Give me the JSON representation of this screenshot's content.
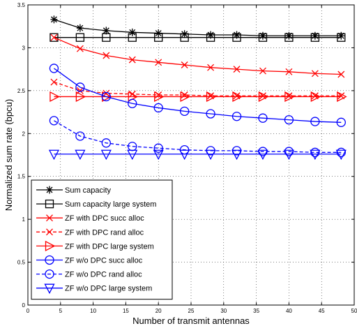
{
  "chart_data": {
    "type": "line",
    "xlabel": "Number of transmit antennas",
    "ylabel": "Normalized sum rate (bpcu)",
    "xlim": [
      0,
      50
    ],
    "ylim": [
      0,
      3.5
    ],
    "xticks": [
      "0",
      "5",
      "10",
      "15",
      "20",
      "25",
      "30",
      "35",
      "40",
      "45",
      "50"
    ],
    "yticks": [
      "0",
      "0.5",
      "1",
      "1.5",
      "2",
      "2.5",
      "3",
      "3.5"
    ],
    "grid": "on",
    "legend_placement": "bottom-left",
    "x": [
      4,
      8,
      12,
      16,
      20,
      24,
      28,
      32,
      36,
      40,
      44,
      48
    ],
    "series": [
      {
        "name": "Sum capacity",
        "color": "#000000",
        "marker": "asterisk",
        "dash": "solid",
        "values": [
          3.33,
          3.23,
          3.2,
          3.18,
          3.17,
          3.16,
          3.15,
          3.15,
          3.14,
          3.14,
          3.14,
          3.14
        ]
      },
      {
        "name": "Sum capacity large system",
        "color": "#000000",
        "marker": "square",
        "dash": "solid",
        "values": [
          3.12,
          3.12,
          3.12,
          3.12,
          3.12,
          3.12,
          3.12,
          3.12,
          3.12,
          3.12,
          3.12,
          3.12
        ]
      },
      {
        "name": "ZF with DPC succ alloc",
        "color": "#ff0000",
        "marker": "x",
        "dash": "solid",
        "values": [
          3.12,
          2.99,
          2.91,
          2.86,
          2.83,
          2.8,
          2.77,
          2.75,
          2.73,
          2.72,
          2.7,
          2.69
        ]
      },
      {
        "name": "ZF with DPC rand alloc",
        "color": "#ff0000",
        "marker": "x",
        "dash": "dashed",
        "values": [
          2.6,
          2.5,
          2.47,
          2.46,
          2.45,
          2.45,
          2.44,
          2.44,
          2.44,
          2.44,
          2.44,
          2.44
        ]
      },
      {
        "name": "ZF with DPC large system",
        "color": "#ff0000",
        "marker": "triangle-right",
        "dash": "solid",
        "values": [
          2.43,
          2.43,
          2.43,
          2.43,
          2.43,
          2.43,
          2.43,
          2.43,
          2.43,
          2.43,
          2.43,
          2.43
        ]
      },
      {
        "name": "ZF w/o DPC succ alloc",
        "color": "#0000ff",
        "marker": "circle",
        "dash": "solid",
        "values": [
          2.76,
          2.54,
          2.43,
          2.35,
          2.3,
          2.26,
          2.23,
          2.2,
          2.18,
          2.16,
          2.14,
          2.13
        ]
      },
      {
        "name": "ZF w/o DPC rand alloc",
        "color": "#0000ff",
        "marker": "circle",
        "dash": "dashed",
        "values": [
          2.15,
          1.97,
          1.89,
          1.85,
          1.83,
          1.81,
          1.8,
          1.8,
          1.79,
          1.79,
          1.78,
          1.78
        ]
      },
      {
        "name": "ZF w/o DPC large system",
        "color": "#0000ff",
        "marker": "triangle-down",
        "dash": "solid",
        "values": [
          1.76,
          1.76,
          1.76,
          1.76,
          1.76,
          1.76,
          1.76,
          1.76,
          1.76,
          1.76,
          1.76,
          1.76
        ]
      }
    ]
  }
}
